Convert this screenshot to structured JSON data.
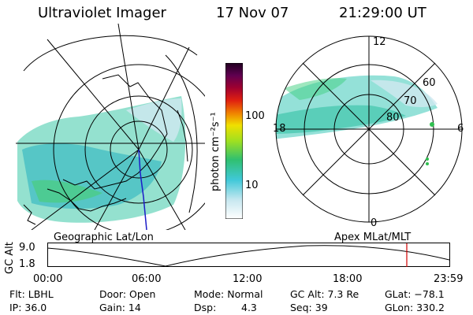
{
  "header": {
    "instrument": "Ultraviolet Imager",
    "date": "17 Nov 07",
    "time": "21:29:00 UT"
  },
  "left_panel": {
    "label": "Geographic Lat/Lon"
  },
  "right_panel": {
    "label": "Apex MLat/MLT",
    "mlt_labels": [
      "12",
      "18",
      "6",
      "0"
    ],
    "mlat_labels": [
      "60",
      "70",
      "80"
    ]
  },
  "colorbar": {
    "unit_label": "photon cm⁻²s⁻¹",
    "ticks": [
      "100",
      "10"
    ]
  },
  "altitude_plot": {
    "ylabel": "GC Alt",
    "y_ticks": [
      "9.0",
      "1.8"
    ],
    "x_ticks": [
      "00:00",
      "06:00",
      "12:00",
      "18:00",
      "23:59"
    ],
    "current_marker_time": "21:29"
  },
  "info": {
    "filter": "Flt: LBHL",
    "ip": "IP: 36.0",
    "door": "Door: Open",
    "gain": "Gain: 14",
    "mode": "Mode: Normal",
    "dsp_label": "Dsp:",
    "dsp_value": "4.3",
    "gc_alt": "GC Alt: 7.3 Re",
    "seq": "Seq: 39",
    "glat": "GLat: −78.1",
    "glon": "GLon: 330.2"
  },
  "colors": {
    "marker": "#d00000",
    "coast": "#0000aa",
    "axis": "#000000"
  }
}
